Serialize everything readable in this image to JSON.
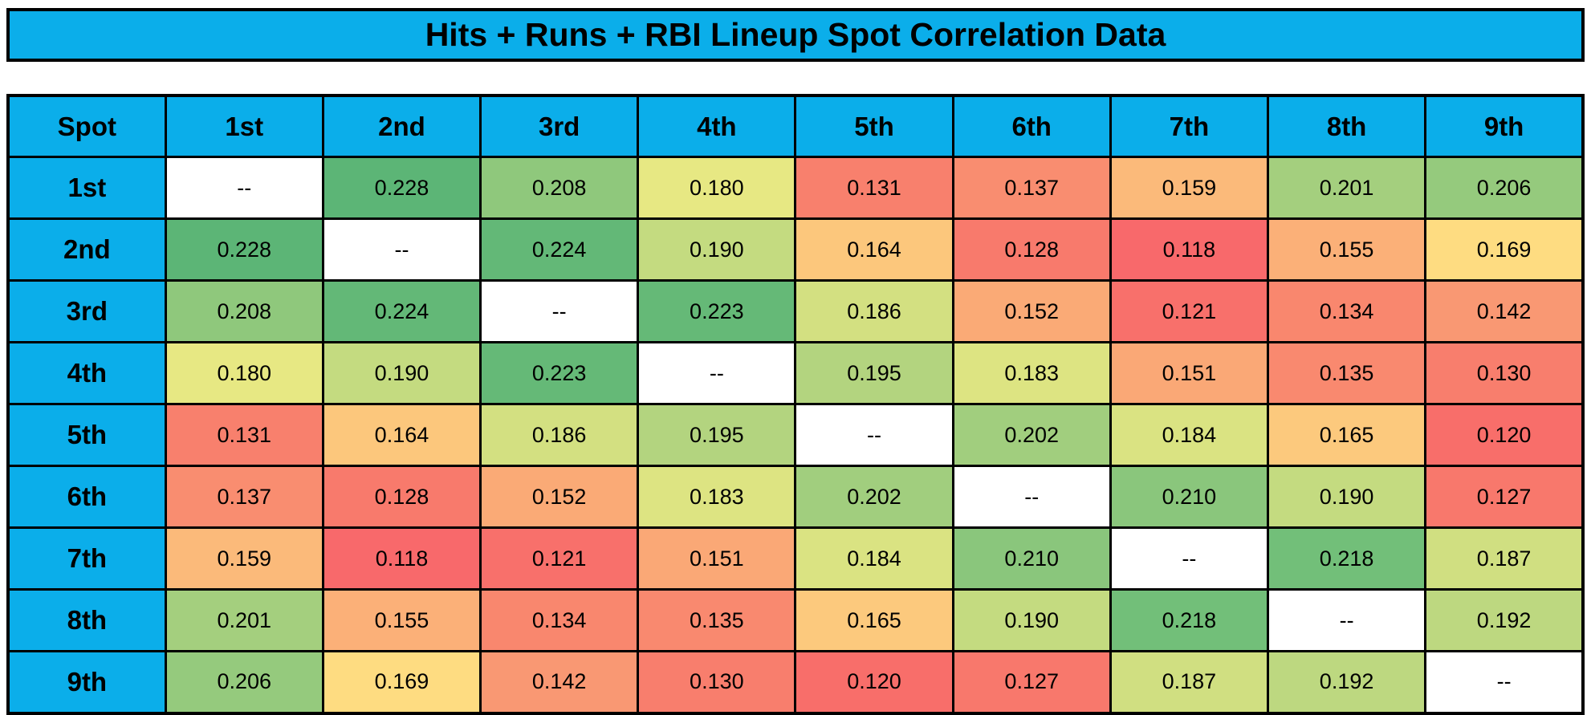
{
  "title": "Hits + Runs + RBI Lineup Spot Correlation Data",
  "chart_data": {
    "type": "heatmap",
    "title": "Hits + Runs + RBI Lineup Spot Correlation Data",
    "row_label_header": "Spot",
    "categories": [
      "1st",
      "2nd",
      "3rd",
      "4th",
      "5th",
      "6th",
      "7th",
      "8th",
      "9th"
    ],
    "diagonal_marker": "--",
    "value_decimals": 3,
    "matrix": [
      [
        null,
        0.228,
        0.208,
        0.18,
        0.131,
        0.137,
        0.159,
        0.201,
        0.206
      ],
      [
        0.228,
        null,
        0.224,
        0.19,
        0.164,
        0.128,
        0.118,
        0.155,
        0.169
      ],
      [
        0.208,
        0.224,
        null,
        0.223,
        0.186,
        0.152,
        0.121,
        0.134,
        0.142
      ],
      [
        0.18,
        0.19,
        0.223,
        null,
        0.195,
        0.183,
        0.151,
        0.135,
        0.13
      ],
      [
        0.131,
        0.164,
        0.186,
        0.195,
        null,
        0.202,
        0.184,
        0.165,
        0.12
      ],
      [
        0.137,
        0.128,
        0.152,
        0.183,
        0.202,
        null,
        0.21,
        0.19,
        0.127
      ],
      [
        0.159,
        0.118,
        0.121,
        0.151,
        0.184,
        0.21,
        null,
        0.218,
        0.187
      ],
      [
        0.201,
        0.155,
        0.134,
        0.135,
        0.165,
        0.19,
        0.218,
        null,
        0.192
      ],
      [
        0.206,
        0.169,
        0.142,
        0.13,
        0.12,
        0.127,
        0.187,
        0.192,
        null
      ]
    ],
    "color_scale": {
      "low_color": "#F8696B",
      "mid_color": "#FFEB84",
      "high_color": "#63BE7B",
      "min_value": 0.118,
      "max_value": 0.228,
      "legend": "red = weakest correlation, green = strongest correlation"
    }
  },
  "styles": {
    "header_fill": "#0BAEEA",
    "diagonal_fill": "#FFFFFF",
    "border_color": "#000000",
    "text_color": "#000000",
    "background": "#FFFFFF",
    "value_colors": {
      "0.118": "#F8696B",
      "0.120": "#F86E6A",
      "0.121": "#F8706B",
      "0.127": "#F8786C",
      "0.128": "#F87A6C",
      "0.130": "#F87E6D",
      "0.131": "#F8806D",
      "0.134": "#F9876E",
      "0.135": "#F9896F",
      "0.137": "#F98D70",
      "0.142": "#F99873",
      "0.151": "#FAA876",
      "0.152": "#FAAA76",
      "0.155": "#FBB078",
      "0.159": "#FBBA7A",
      "0.164": "#FCC77C",
      "0.165": "#FCC97D",
      "0.169": "#FEDC81",
      "0.180": "#E7E883",
      "0.183": "#DDE482",
      "0.184": "#DAE382",
      "0.186": "#D3E081",
      "0.187": "#D0DF81",
      "0.190": "#C4DB80",
      "0.192": "#BDD880",
      "0.195": "#B3D47F",
      "0.201": "#A4CF7E",
      "0.202": "#A1CE7E",
      "0.206": "#95CA7D",
      "0.208": "#8FC87C",
      "0.210": "#8AC67C",
      "0.218": "#72BF79",
      "0.223": "#65B977",
      "0.224": "#63B877",
      "0.228": "#5CB576"
    }
  }
}
